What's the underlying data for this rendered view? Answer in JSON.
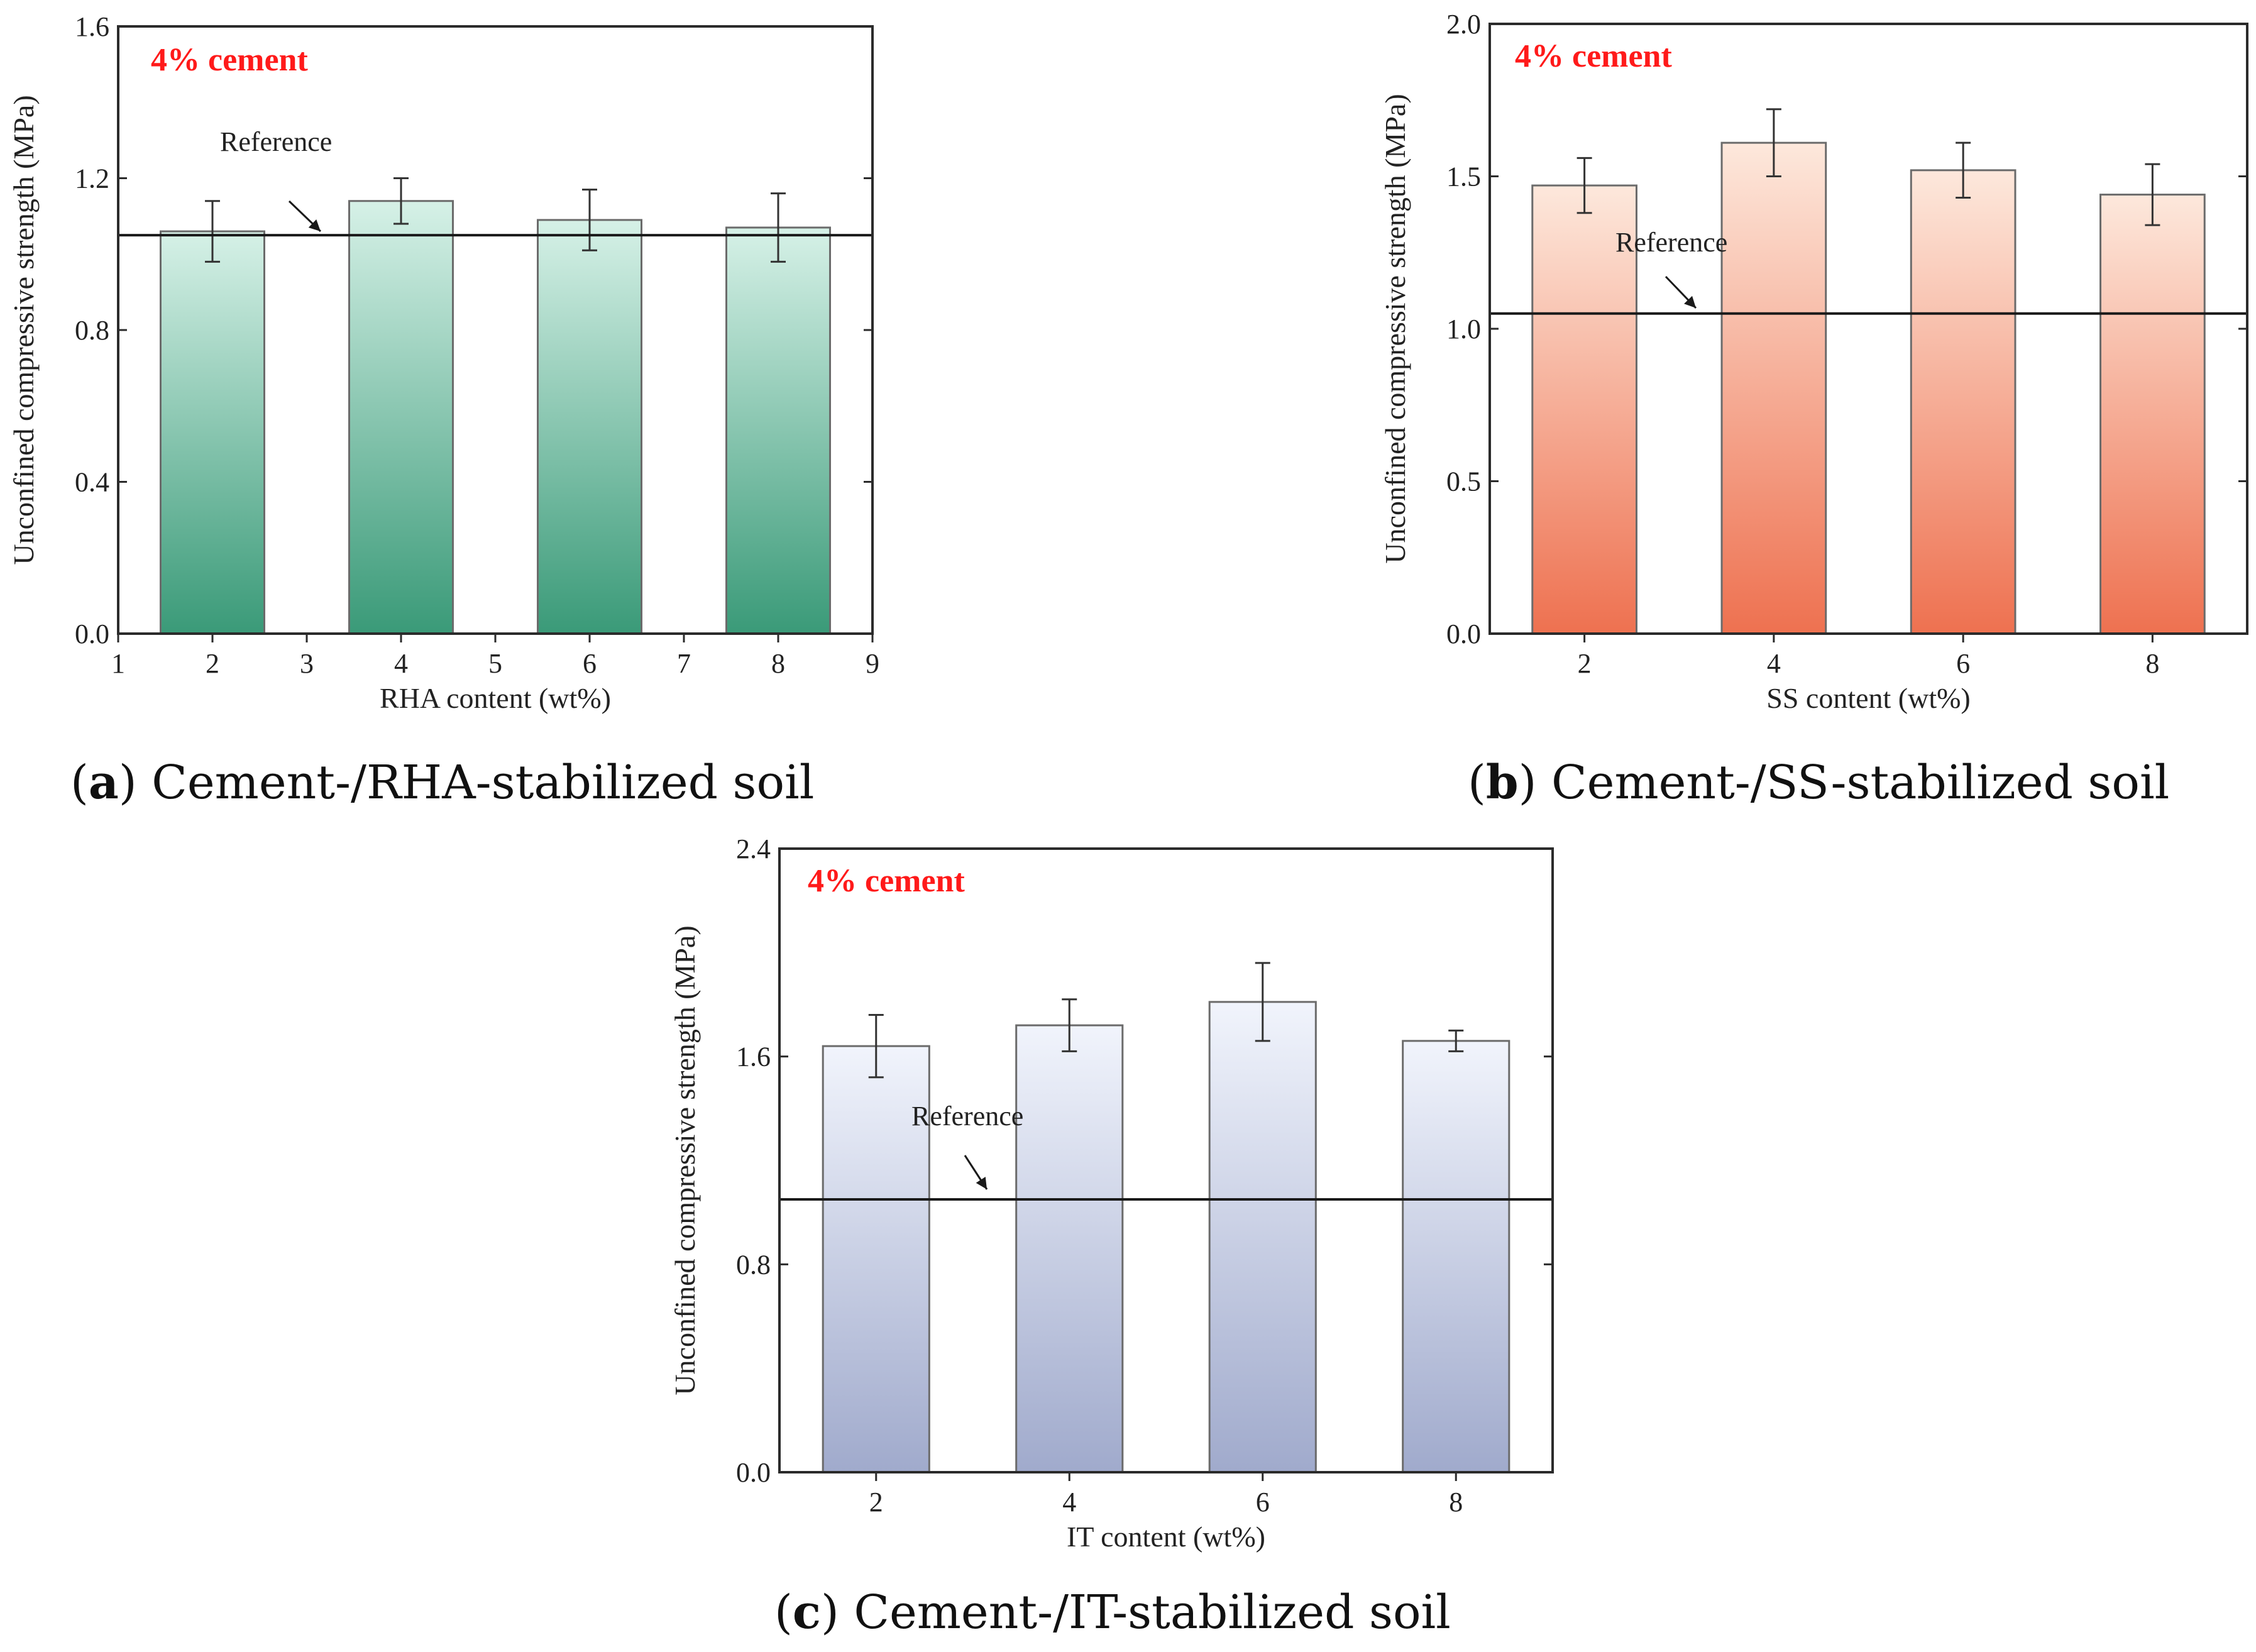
{
  "figure": {
    "note_color": "#ff1a1a"
  },
  "chart_data": [
    {
      "type": "bar",
      "panel": "a",
      "caption_letter": "a",
      "caption_text": "Cement-/RHA-stabilized soil",
      "note": "4% cement",
      "xlabel": "RHA content (wt%)",
      "ylabel": "Unconfined compressive strength (MPa)",
      "xlim": [
        1,
        9
      ],
      "x_ticks": [
        1,
        2,
        3,
        4,
        5,
        6,
        7,
        8,
        9
      ],
      "x_tick_labels": [
        "1",
        "2",
        "3",
        "4",
        "5",
        "6",
        "7",
        "8",
        "9"
      ],
      "ylim": [
        0,
        1.6
      ],
      "y_ticks": [
        0,
        0.4,
        0.8,
        1.2,
        1.6
      ],
      "y_tick_labels": [
        "0.0",
        "0.4",
        "0.8",
        "1.2",
        "1.6"
      ],
      "x": [
        2,
        4,
        6,
        8
      ],
      "values": [
        1.06,
        1.14,
        1.09,
        1.07
      ],
      "errors": [
        0.08,
        0.06,
        0.08,
        0.09
      ],
      "bar_width": 1.1,
      "reference": {
        "label": "Reference",
        "value": 1.05
      },
      "color_top": "#d6f1e7",
      "color_bottom": "#3a9a78"
    },
    {
      "type": "bar",
      "panel": "b",
      "caption_letter": "b",
      "caption_text": "Cement-/SS-stabilized soil",
      "note": "4% cement",
      "xlabel": "SS content (wt%)",
      "ylabel": "Unconfined compressive strength (MPa)",
      "xlim": [
        1,
        9
      ],
      "x_ticks": [
        2,
        4,
        6,
        8
      ],
      "x_tick_labels": [
        "2",
        "4",
        "6",
        "8"
      ],
      "ylim": [
        0,
        2.0
      ],
      "y_ticks": [
        0,
        0.5,
        1.0,
        1.5,
        2.0
      ],
      "y_tick_labels": [
        "0.0",
        "0.5",
        "1.0",
        "1.5",
        "2.0"
      ],
      "x": [
        2,
        4,
        6,
        8
      ],
      "values": [
        1.47,
        1.61,
        1.52,
        1.44
      ],
      "errors": [
        0.09,
        0.11,
        0.09,
        0.1
      ],
      "bar_width": 1.1,
      "reference": {
        "label": "Reference",
        "value": 1.05
      },
      "color_top": "#fde8dc",
      "color_bottom": "#ee7150"
    },
    {
      "type": "bar",
      "panel": "c",
      "caption_letter": "c",
      "caption_text": "Cement-/IT-stabilized soil",
      "note": "4% cement",
      "xlabel": "IT content (wt%)",
      "ylabel": "Unconfined compressive strength (MPa)",
      "xlim": [
        1,
        9
      ],
      "x_ticks": [
        2,
        4,
        6,
        8
      ],
      "x_tick_labels": [
        "2",
        "4",
        "6",
        "8"
      ],
      "ylim": [
        0,
        2.4
      ],
      "y_ticks": [
        0,
        0.8,
        1.6,
        2.4
      ],
      "y_tick_labels": [
        "0.0",
        "0.8",
        "1.6",
        "2.4"
      ],
      "x": [
        2,
        4,
        6,
        8
      ],
      "values": [
        1.64,
        1.72,
        1.81,
        1.66
      ],
      "errors": [
        0.12,
        0.1,
        0.15,
        0.04
      ],
      "bar_width": 1.1,
      "reference": {
        "label": "Reference",
        "value": 1.05
      },
      "color_top": "#f1f4fc",
      "color_bottom": "#a0aacc"
    }
  ]
}
